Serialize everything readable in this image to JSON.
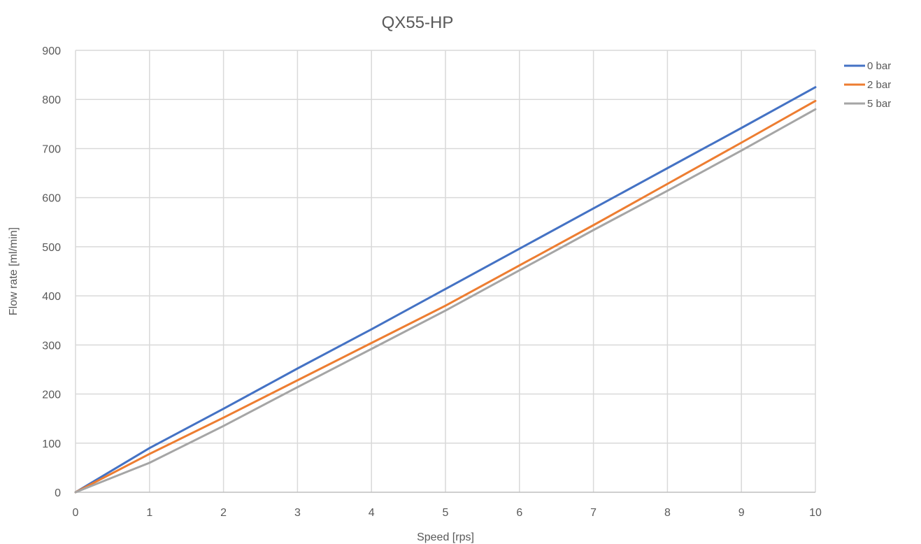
{
  "chart_data": {
    "type": "line",
    "title": "QX55-HP",
    "xlabel": "Speed [rps]",
    "ylabel": "Flow rate [ml/min]",
    "xlim": [
      0,
      10
    ],
    "ylim": [
      0,
      900
    ],
    "xticks": [
      0,
      1,
      2,
      3,
      4,
      5,
      6,
      7,
      8,
      9,
      10
    ],
    "yticks": [
      0,
      100,
      200,
      300,
      400,
      500,
      600,
      700,
      800,
      900
    ],
    "xtick_labels": [
      "0",
      "1",
      "2",
      "3",
      "4",
      "5",
      "6",
      "7",
      "8",
      "9",
      "10"
    ],
    "ytick_labels": [
      "0",
      "100",
      "200",
      "300",
      "400",
      "500",
      "600",
      "700",
      "800",
      "900"
    ],
    "grid": true,
    "legend_position": "right-top",
    "series": [
      {
        "name": "0 bar",
        "color": "#4472C4",
        "x": [
          0,
          1,
          2,
          3,
          4,
          5,
          6,
          7,
          8,
          9,
          10
        ],
        "y": [
          0,
          90,
          170,
          252,
          332,
          414,
          496,
          578,
          660,
          742,
          825
        ]
      },
      {
        "name": "2 bar",
        "color": "#ED7D31",
        "x": [
          0,
          1,
          2,
          3,
          4,
          5,
          6,
          7,
          8,
          9,
          10
        ],
        "y": [
          0,
          78,
          152,
          228,
          304,
          380,
          462,
          544,
          628,
          712,
          797
        ]
      },
      {
        "name": "5 bar",
        "color": "#A5A5A5",
        "x": [
          0,
          1,
          2,
          3,
          4,
          5,
          6,
          7,
          8,
          9,
          10
        ],
        "y": [
          0,
          60,
          135,
          214,
          292,
          370,
          452,
          534,
          614,
          696,
          780
        ]
      }
    ]
  }
}
